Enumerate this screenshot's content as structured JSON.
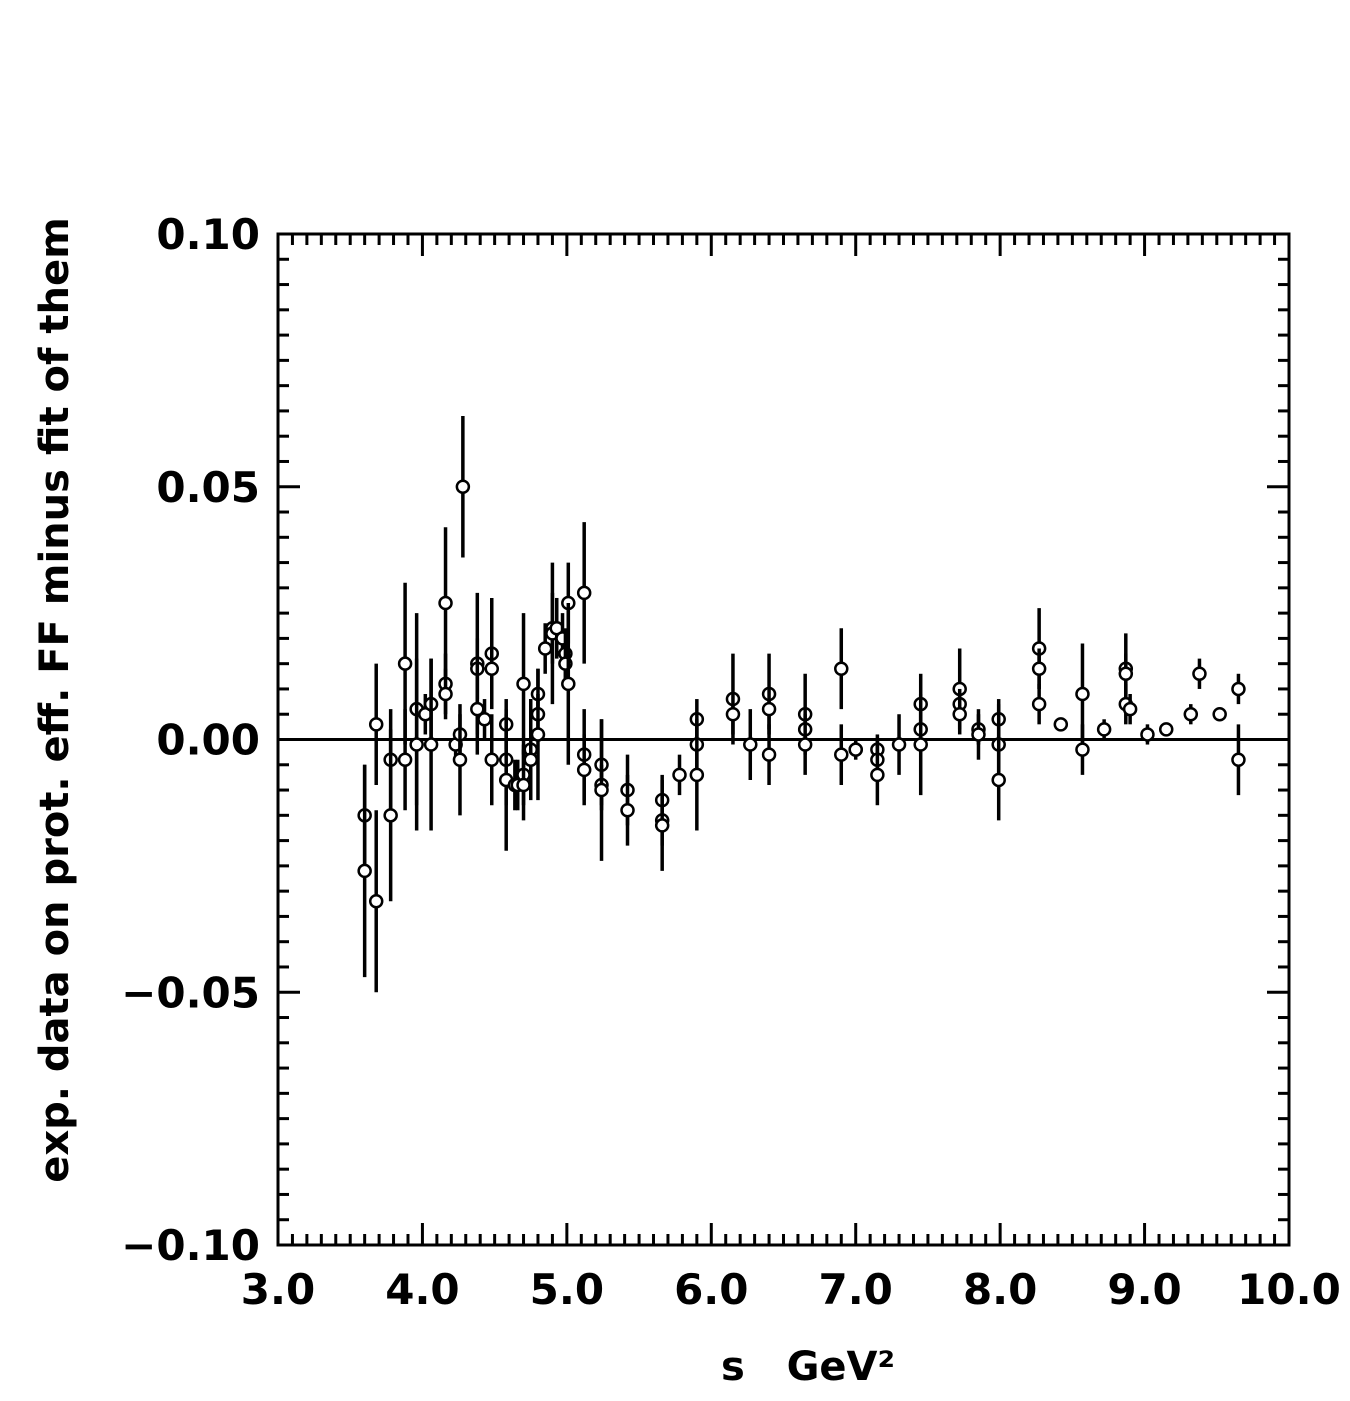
{
  "chart_data": {
    "type": "scatter",
    "title": "",
    "xlabel": "s   GeV²",
    "ylabel": "exp. data on prot. eff. FF minus fit of them",
    "xlim": [
      3.0,
      10.0
    ],
    "ylim": [
      -0.1,
      0.1
    ],
    "x_ticks": [
      "3.0",
      "4.0",
      "5.0",
      "6.0",
      "7.0",
      "8.0",
      "9.0",
      "10.0"
    ],
    "y_ticks": [
      "0.10",
      "0.05",
      "0.00",
      "−0.05",
      "−0.10"
    ],
    "x_tick_values": [
      3,
      4,
      5,
      6,
      7,
      8,
      9,
      10
    ],
    "y_tick_values": [
      0.1,
      0.05,
      0.0,
      -0.05,
      -0.1
    ],
    "x_minor_step": 0.1,
    "y_minor_step": 0.005,
    "zero_line": true,
    "grid": false,
    "legend": "none",
    "marker": "open-circle",
    "color": "#000000",
    "points": [
      {
        "x": 3.6,
        "y": -0.015,
        "err": 0.01
      },
      {
        "x": 3.6,
        "y": -0.026,
        "err": 0.021
      },
      {
        "x": 3.68,
        "y": 0.003,
        "err": 0.012
      },
      {
        "x": 3.68,
        "y": -0.032,
        "err": 0.018
      },
      {
        "x": 3.78,
        "y": -0.004,
        "err": 0.01
      },
      {
        "x": 3.78,
        "y": -0.015,
        "err": 0.017
      },
      {
        "x": 3.88,
        "y": 0.015,
        "err": 0.016
      },
      {
        "x": 3.88,
        "y": -0.004,
        "err": 0.01
      },
      {
        "x": 3.96,
        "y": 0.006,
        "err": 0.019
      },
      {
        "x": 3.96,
        "y": -0.001,
        "err": 0.017
      },
      {
        "x": 4.02,
        "y": 0.005,
        "err": 0.004
      },
      {
        "x": 4.06,
        "y": 0.007,
        "err": 0.009
      },
      {
        "x": 4.06,
        "y": -0.001,
        "err": 0.017
      },
      {
        "x": 4.16,
        "y": 0.027,
        "err": 0.015
      },
      {
        "x": 4.16,
        "y": 0.011,
        "err": 0.006
      },
      {
        "x": 4.16,
        "y": 0.009,
        "err": 0.005
      },
      {
        "x": 4.23,
        "y": -0.001,
        "err": 0.003
      },
      {
        "x": 4.26,
        "y": 0.001,
        "err": 0.004
      },
      {
        "x": 4.26,
        "y": -0.004,
        "err": 0.011
      },
      {
        "x": 4.28,
        "y": 0.05,
        "err": 0.014
      },
      {
        "x": 4.38,
        "y": 0.015,
        "err": 0.014
      },
      {
        "x": 4.38,
        "y": 0.014,
        "err": 0.006
      },
      {
        "x": 4.38,
        "y": 0.006,
        "err": 0.009
      },
      {
        "x": 4.43,
        "y": 0.004,
        "err": 0.004
      },
      {
        "x": 4.48,
        "y": 0.017,
        "err": 0.011
      },
      {
        "x": 4.48,
        "y": 0.014,
        "err": 0.005
      },
      {
        "x": 4.48,
        "y": -0.004,
        "err": 0.009
      },
      {
        "x": 4.58,
        "y": 0.003,
        "err": 0.005
      },
      {
        "x": 4.58,
        "y": -0.004,
        "err": 0.009
      },
      {
        "x": 4.58,
        "y": -0.008,
        "err": 0.014
      },
      {
        "x": 4.64,
        "y": -0.009,
        "err": 0.005
      },
      {
        "x": 4.66,
        "y": -0.009,
        "err": 0.005
      },
      {
        "x": 4.7,
        "y": 0.011,
        "err": 0.014
      },
      {
        "x": 4.7,
        "y": -0.007,
        "err": 0.006
      },
      {
        "x": 4.7,
        "y": -0.009,
        "err": 0.007
      },
      {
        "x": 4.75,
        "y": -0.002,
        "err": 0.01
      },
      {
        "x": 4.75,
        "y": -0.004,
        "err": 0.006
      },
      {
        "x": 4.8,
        "y": 0.009,
        "err": 0.005
      },
      {
        "x": 4.8,
        "y": 0.005,
        "err": 0.004
      },
      {
        "x": 4.8,
        "y": 0.001,
        "err": 0.013
      },
      {
        "x": 4.85,
        "y": 0.018,
        "err": 0.005
      },
      {
        "x": 4.9,
        "y": 0.022,
        "err": 0.007
      },
      {
        "x": 4.9,
        "y": 0.021,
        "err": 0.014
      },
      {
        "x": 4.93,
        "y": 0.022,
        "err": 0.006
      },
      {
        "x": 4.97,
        "y": 0.02,
        "err": 0.005
      },
      {
        "x": 4.99,
        "y": 0.017,
        "err": 0.005
      },
      {
        "x": 4.99,
        "y": 0.015,
        "err": 0.004
      },
      {
        "x": 5.01,
        "y": 0.027,
        "err": 0.008
      },
      {
        "x": 5.01,
        "y": 0.011,
        "err": 0.016
      },
      {
        "x": 5.12,
        "y": 0.029,
        "err": 0.014
      },
      {
        "x": 5.12,
        "y": -0.003,
        "err": 0.009
      },
      {
        "x": 5.12,
        "y": -0.006,
        "err": 0.007
      },
      {
        "x": 5.24,
        "y": -0.005,
        "err": 0.009
      },
      {
        "x": 5.24,
        "y": -0.009,
        "err": 0.004
      },
      {
        "x": 5.24,
        "y": -0.01,
        "err": 0.014
      },
      {
        "x": 5.42,
        "y": -0.01,
        "err": 0.007
      },
      {
        "x": 5.42,
        "y": -0.014,
        "err": 0.007
      },
      {
        "x": 5.66,
        "y": -0.012,
        "err": 0.005
      },
      {
        "x": 5.66,
        "y": -0.016,
        "err": 0.005
      },
      {
        "x": 5.66,
        "y": -0.017,
        "err": 0.009
      },
      {
        "x": 5.78,
        "y": -0.007,
        "err": 0.004
      },
      {
        "x": 5.9,
        "y": 0.004,
        "err": 0.004
      },
      {
        "x": 5.9,
        "y": -0.001,
        "err": 0.006
      },
      {
        "x": 5.9,
        "y": -0.007,
        "err": 0.011
      },
      {
        "x": 6.15,
        "y": 0.008,
        "err": 0.009
      },
      {
        "x": 6.15,
        "y": 0.005,
        "err": 0.004
      },
      {
        "x": 6.27,
        "y": -0.001,
        "err": 0.007
      },
      {
        "x": 6.4,
        "y": 0.009,
        "err": 0.008
      },
      {
        "x": 6.4,
        "y": 0.006,
        "err": 0.004
      },
      {
        "x": 6.4,
        "y": -0.003,
        "err": 0.006
      },
      {
        "x": 6.65,
        "y": 0.005,
        "err": 0.008
      },
      {
        "x": 6.65,
        "y": 0.002,
        "err": 0.004
      },
      {
        "x": 6.65,
        "y": -0.001,
        "err": 0.006
      },
      {
        "x": 6.9,
        "y": 0.014,
        "err": 0.008
      },
      {
        "x": 6.9,
        "y": -0.003,
        "err": 0.006
      },
      {
        "x": 7.0,
        "y": -0.002,
        "err": 0.002
      },
      {
        "x": 7.0,
        "y": -0.002,
        "err": 0.001
      },
      {
        "x": 7.15,
        "y": -0.002,
        "err": 0.003
      },
      {
        "x": 7.15,
        "y": -0.004,
        "err": 0.004
      },
      {
        "x": 7.15,
        "y": -0.007,
        "err": 0.006
      },
      {
        "x": 7.3,
        "y": -0.001,
        "err": 0.006
      },
      {
        "x": 7.45,
        "y": 0.007,
        "err": 0.006
      },
      {
        "x": 7.45,
        "y": 0.002,
        "err": 0.004
      },
      {
        "x": 7.45,
        "y": -0.001,
        "err": 0.01
      },
      {
        "x": 7.72,
        "y": 0.01,
        "err": 0.008
      },
      {
        "x": 7.72,
        "y": 0.007,
        "err": 0.003
      },
      {
        "x": 7.72,
        "y": 0.005,
        "err": 0.004
      },
      {
        "x": 7.85,
        "y": 0.002,
        "err": 0.003
      },
      {
        "x": 7.85,
        "y": 0.001,
        "err": 0.005
      },
      {
        "x": 7.99,
        "y": 0.004,
        "err": 0.004
      },
      {
        "x": 7.99,
        "y": -0.001,
        "err": 0.008
      },
      {
        "x": 7.99,
        "y": -0.008,
        "err": 0.008
      },
      {
        "x": 8.27,
        "y": 0.018,
        "err": 0.008
      },
      {
        "x": 8.27,
        "y": 0.014,
        "err": 0.004
      },
      {
        "x": 8.27,
        "y": 0.007,
        "err": 0.004
      },
      {
        "x": 8.42,
        "y": 0.003,
        "err": 0.001
      },
      {
        "x": 8.57,
        "y": 0.009,
        "err": 0.01
      },
      {
        "x": 8.57,
        "y": -0.002,
        "err": 0.005
      },
      {
        "x": 8.72,
        "y": 0.002,
        "err": 0.002
      },
      {
        "x": 8.87,
        "y": 0.014,
        "err": 0.007
      },
      {
        "x": 8.87,
        "y": 0.013,
        "err": 0.004
      },
      {
        "x": 8.87,
        "y": 0.007,
        "err": 0.004
      },
      {
        "x": 8.9,
        "y": 0.006,
        "err": 0.003
      },
      {
        "x": 9.02,
        "y": 0.001,
        "err": 0.002
      },
      {
        "x": 9.15,
        "y": 0.002,
        "err": 0.001
      },
      {
        "x": 9.32,
        "y": 0.005,
        "err": 0.002
      },
      {
        "x": 9.38,
        "y": 0.013,
        "err": 0.003
      },
      {
        "x": 9.52,
        "y": 0.005,
        "err": 0.001
      },
      {
        "x": 9.65,
        "y": 0.01,
        "err": 0.003
      },
      {
        "x": 9.65,
        "y": -0.004,
        "err": 0.007
      }
    ]
  }
}
